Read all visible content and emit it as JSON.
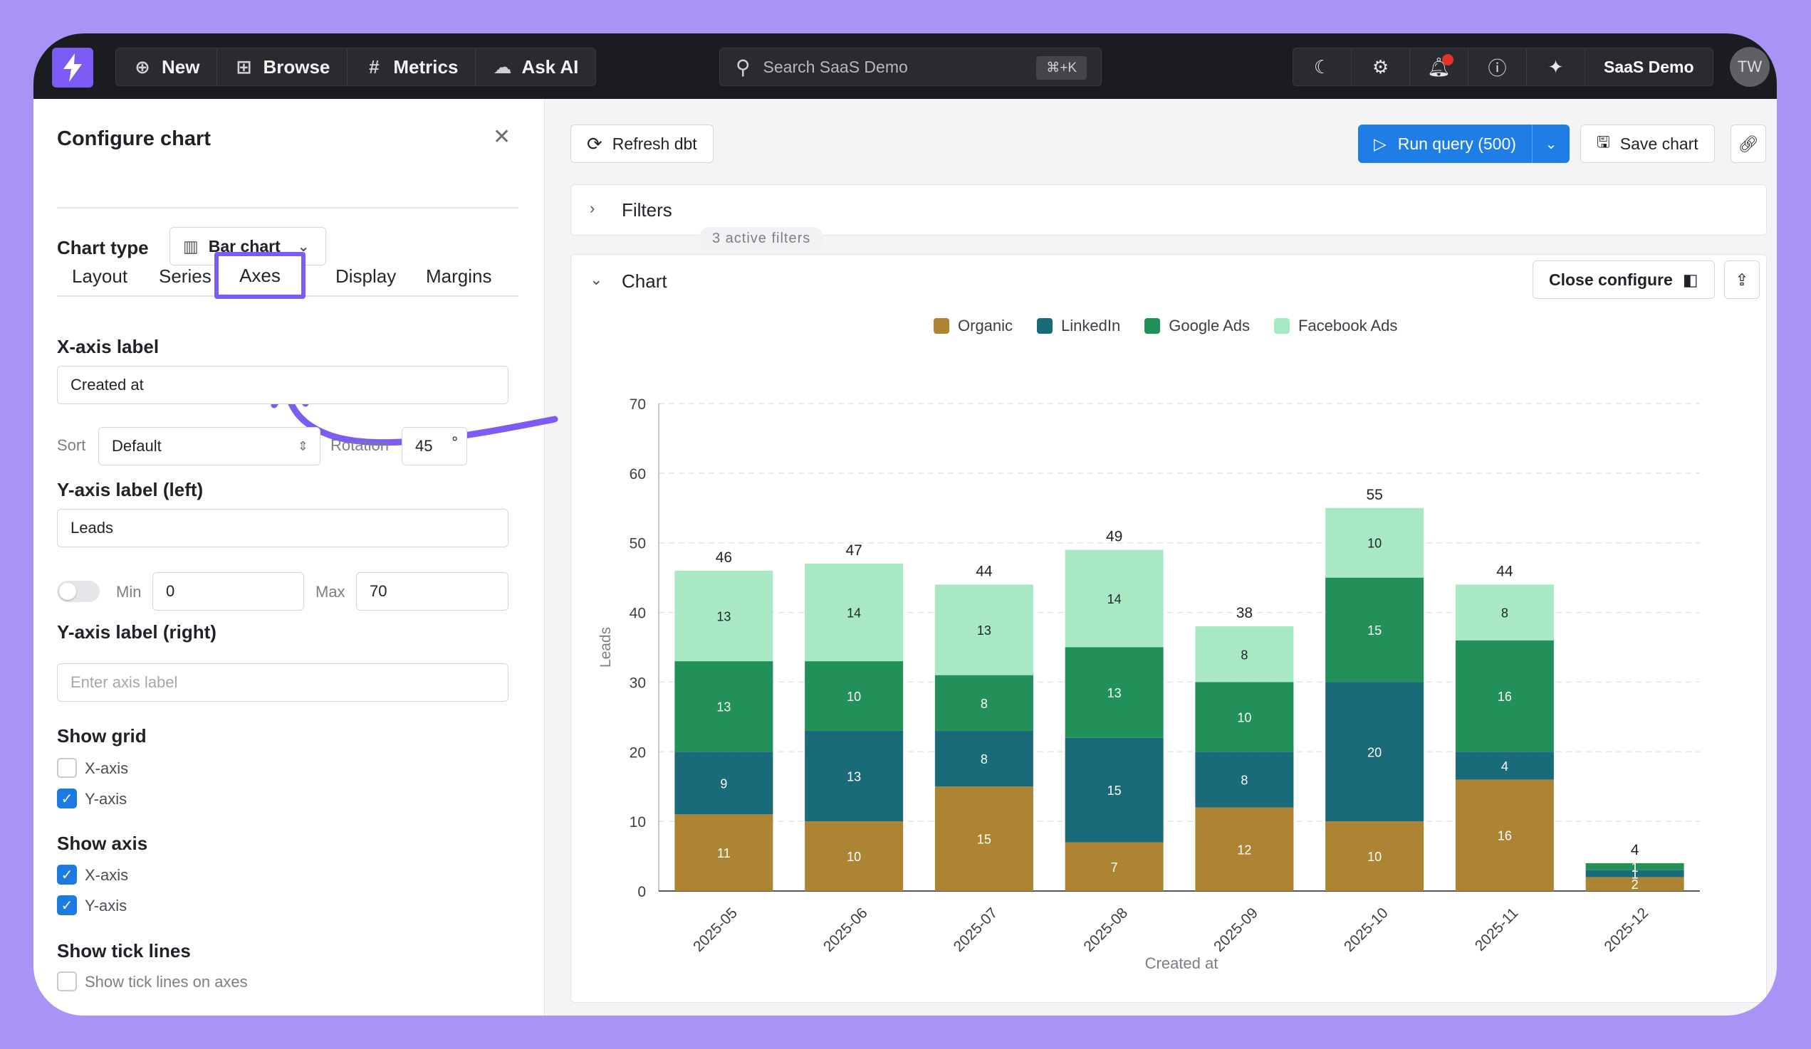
{
  "topbar": {
    "nav": [
      {
        "icon": "plus-circle-icon",
        "label": "New"
      },
      {
        "icon": "grid-icon",
        "label": "Browse"
      },
      {
        "icon": "hash-icon",
        "label": "Metrics"
      },
      {
        "icon": "ai-chat-icon",
        "label": "Ask AI"
      }
    ],
    "search_placeholder": "Search SaaS Demo",
    "search_shortcut": "⌘+K",
    "org": "SaaS Demo",
    "avatar": "TW"
  },
  "panel": {
    "title": "Configure chart",
    "chart_type_label": "Chart type",
    "chart_type_value": "Bar chart",
    "tabs": [
      "Layout",
      "Series",
      "Axes",
      "Display",
      "Margins"
    ],
    "active_tab": "Axes",
    "x_axis_label_title": "X-axis label",
    "x_axis_label_value": "Created at",
    "sort_label": "Sort",
    "sort_value": "Default",
    "rotation_label": "Rotation",
    "rotation_value": "45",
    "rotation_unit": "°",
    "y_left_title": "Y-axis label (left)",
    "y_left_value": "Leads",
    "min_label": "Min",
    "min_value": "0",
    "max_label": "Max",
    "max_value": "70",
    "y_right_title": "Y-axis label (right)",
    "y_right_placeholder": "Enter axis label",
    "show_grid_title": "Show grid",
    "grid_x": "X-axis",
    "grid_y": "Y-axis",
    "show_axis_title": "Show axis",
    "axis_x": "X-axis",
    "axis_y": "Y-axis",
    "tick_title": "Show tick lines",
    "tick_label": "Show tick lines on axes"
  },
  "main": {
    "refresh_label": "Refresh dbt",
    "run_label": "Run query (500)",
    "save_label": "Save chart",
    "filters_label": "Filters",
    "filters_badge": "3 active filters",
    "chart_section_label": "Chart",
    "close_configure_label": "Close configure"
  },
  "colors": {
    "Organic": "#ad8434",
    "LinkedIn": "#196b79",
    "Google Ads": "#219159",
    "Facebook Ads": "#a8e8c3"
  },
  "chart_data": {
    "type": "bar",
    "stacked": true,
    "categories": [
      "2025-05",
      "2025-06",
      "2025-07",
      "2025-08",
      "2025-09",
      "2025-10",
      "2025-11",
      "2025-12"
    ],
    "series": [
      {
        "name": "Organic",
        "values": [
          11,
          10,
          15,
          7,
          12,
          10,
          16,
          2
        ]
      },
      {
        "name": "LinkedIn",
        "values": [
          9,
          13,
          8,
          15,
          8,
          20,
          4,
          1
        ]
      },
      {
        "name": "Google Ads",
        "values": [
          13,
          10,
          8,
          13,
          10,
          15,
          16,
          1
        ]
      },
      {
        "name": "Facebook Ads",
        "values": [
          13,
          14,
          13,
          14,
          8,
          10,
          8,
          0
        ]
      }
    ],
    "totals": [
      46,
      47,
      44,
      49,
      38,
      55,
      44,
      4
    ],
    "xlabel": "Created at",
    "ylabel": "Leads",
    "ylim": [
      0,
      70
    ],
    "yticks": [
      0,
      10,
      20,
      30,
      40,
      50,
      60,
      70
    ],
    "grid": "y",
    "legend": "top-center"
  }
}
